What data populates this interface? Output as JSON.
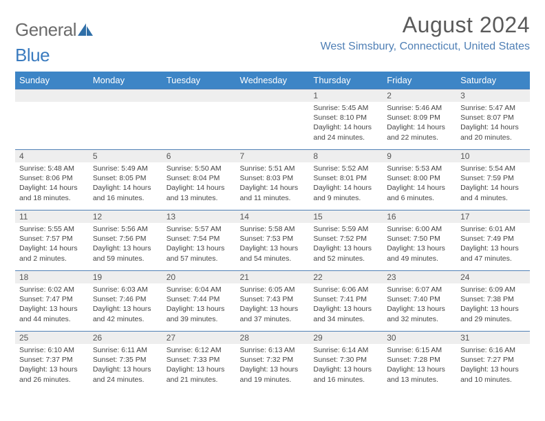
{
  "logo": {
    "word1": "General",
    "word2": "Blue"
  },
  "header": {
    "month_title": "August 2024",
    "location": "West Simsbury, Connecticut, United States"
  },
  "colors": {
    "header_bg": "#3d85c6",
    "header_text": "#ffffff",
    "cell_border": "#4f7fb5",
    "daynum_bg": "#eeeeee",
    "location_text": "#4f7fb5",
    "logo_gray": "#6b6b6b",
    "logo_blue": "#3a7bbf"
  },
  "weekdays": [
    "Sunday",
    "Monday",
    "Tuesday",
    "Wednesday",
    "Thursday",
    "Friday",
    "Saturday"
  ],
  "weeks": [
    [
      {
        "n": "",
        "sr": "",
        "ss": "",
        "dl": ""
      },
      {
        "n": "",
        "sr": "",
        "ss": "",
        "dl": ""
      },
      {
        "n": "",
        "sr": "",
        "ss": "",
        "dl": ""
      },
      {
        "n": "",
        "sr": "",
        "ss": "",
        "dl": ""
      },
      {
        "n": "1",
        "sr": "Sunrise: 5:45 AM",
        "ss": "Sunset: 8:10 PM",
        "dl": "Daylight: 14 hours and 24 minutes."
      },
      {
        "n": "2",
        "sr": "Sunrise: 5:46 AM",
        "ss": "Sunset: 8:09 PM",
        "dl": "Daylight: 14 hours and 22 minutes."
      },
      {
        "n": "3",
        "sr": "Sunrise: 5:47 AM",
        "ss": "Sunset: 8:07 PM",
        "dl": "Daylight: 14 hours and 20 minutes."
      }
    ],
    [
      {
        "n": "4",
        "sr": "Sunrise: 5:48 AM",
        "ss": "Sunset: 8:06 PM",
        "dl": "Daylight: 14 hours and 18 minutes."
      },
      {
        "n": "5",
        "sr": "Sunrise: 5:49 AM",
        "ss": "Sunset: 8:05 PM",
        "dl": "Daylight: 14 hours and 16 minutes."
      },
      {
        "n": "6",
        "sr": "Sunrise: 5:50 AM",
        "ss": "Sunset: 8:04 PM",
        "dl": "Daylight: 14 hours and 13 minutes."
      },
      {
        "n": "7",
        "sr": "Sunrise: 5:51 AM",
        "ss": "Sunset: 8:03 PM",
        "dl": "Daylight: 14 hours and 11 minutes."
      },
      {
        "n": "8",
        "sr": "Sunrise: 5:52 AM",
        "ss": "Sunset: 8:01 PM",
        "dl": "Daylight: 14 hours and 9 minutes."
      },
      {
        "n": "9",
        "sr": "Sunrise: 5:53 AM",
        "ss": "Sunset: 8:00 PM",
        "dl": "Daylight: 14 hours and 6 minutes."
      },
      {
        "n": "10",
        "sr": "Sunrise: 5:54 AM",
        "ss": "Sunset: 7:59 PM",
        "dl": "Daylight: 14 hours and 4 minutes."
      }
    ],
    [
      {
        "n": "11",
        "sr": "Sunrise: 5:55 AM",
        "ss": "Sunset: 7:57 PM",
        "dl": "Daylight: 14 hours and 2 minutes."
      },
      {
        "n": "12",
        "sr": "Sunrise: 5:56 AM",
        "ss": "Sunset: 7:56 PM",
        "dl": "Daylight: 13 hours and 59 minutes."
      },
      {
        "n": "13",
        "sr": "Sunrise: 5:57 AM",
        "ss": "Sunset: 7:54 PM",
        "dl": "Daylight: 13 hours and 57 minutes."
      },
      {
        "n": "14",
        "sr": "Sunrise: 5:58 AM",
        "ss": "Sunset: 7:53 PM",
        "dl": "Daylight: 13 hours and 54 minutes."
      },
      {
        "n": "15",
        "sr": "Sunrise: 5:59 AM",
        "ss": "Sunset: 7:52 PM",
        "dl": "Daylight: 13 hours and 52 minutes."
      },
      {
        "n": "16",
        "sr": "Sunrise: 6:00 AM",
        "ss": "Sunset: 7:50 PM",
        "dl": "Daylight: 13 hours and 49 minutes."
      },
      {
        "n": "17",
        "sr": "Sunrise: 6:01 AM",
        "ss": "Sunset: 7:49 PM",
        "dl": "Daylight: 13 hours and 47 minutes."
      }
    ],
    [
      {
        "n": "18",
        "sr": "Sunrise: 6:02 AM",
        "ss": "Sunset: 7:47 PM",
        "dl": "Daylight: 13 hours and 44 minutes."
      },
      {
        "n": "19",
        "sr": "Sunrise: 6:03 AM",
        "ss": "Sunset: 7:46 PM",
        "dl": "Daylight: 13 hours and 42 minutes."
      },
      {
        "n": "20",
        "sr": "Sunrise: 6:04 AM",
        "ss": "Sunset: 7:44 PM",
        "dl": "Daylight: 13 hours and 39 minutes."
      },
      {
        "n": "21",
        "sr": "Sunrise: 6:05 AM",
        "ss": "Sunset: 7:43 PM",
        "dl": "Daylight: 13 hours and 37 minutes."
      },
      {
        "n": "22",
        "sr": "Sunrise: 6:06 AM",
        "ss": "Sunset: 7:41 PM",
        "dl": "Daylight: 13 hours and 34 minutes."
      },
      {
        "n": "23",
        "sr": "Sunrise: 6:07 AM",
        "ss": "Sunset: 7:40 PM",
        "dl": "Daylight: 13 hours and 32 minutes."
      },
      {
        "n": "24",
        "sr": "Sunrise: 6:09 AM",
        "ss": "Sunset: 7:38 PM",
        "dl": "Daylight: 13 hours and 29 minutes."
      }
    ],
    [
      {
        "n": "25",
        "sr": "Sunrise: 6:10 AM",
        "ss": "Sunset: 7:37 PM",
        "dl": "Daylight: 13 hours and 26 minutes."
      },
      {
        "n": "26",
        "sr": "Sunrise: 6:11 AM",
        "ss": "Sunset: 7:35 PM",
        "dl": "Daylight: 13 hours and 24 minutes."
      },
      {
        "n": "27",
        "sr": "Sunrise: 6:12 AM",
        "ss": "Sunset: 7:33 PM",
        "dl": "Daylight: 13 hours and 21 minutes."
      },
      {
        "n": "28",
        "sr": "Sunrise: 6:13 AM",
        "ss": "Sunset: 7:32 PM",
        "dl": "Daylight: 13 hours and 19 minutes."
      },
      {
        "n": "29",
        "sr": "Sunrise: 6:14 AM",
        "ss": "Sunset: 7:30 PM",
        "dl": "Daylight: 13 hours and 16 minutes."
      },
      {
        "n": "30",
        "sr": "Sunrise: 6:15 AM",
        "ss": "Sunset: 7:28 PM",
        "dl": "Daylight: 13 hours and 13 minutes."
      },
      {
        "n": "31",
        "sr": "Sunrise: 6:16 AM",
        "ss": "Sunset: 7:27 PM",
        "dl": "Daylight: 13 hours and 10 minutes."
      }
    ]
  ]
}
